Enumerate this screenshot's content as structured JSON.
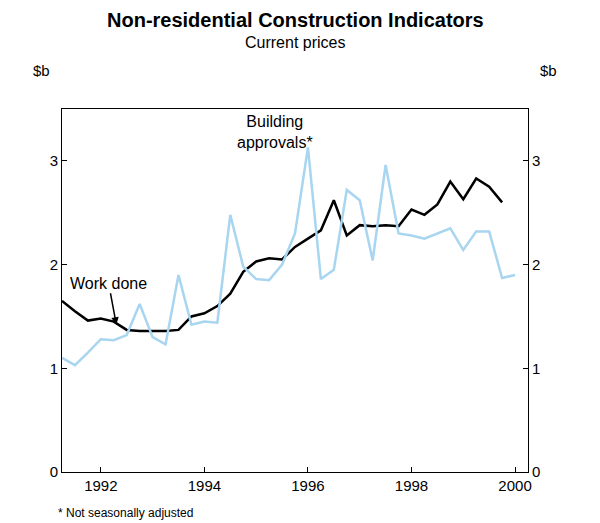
{
  "chart_data": {
    "type": "line",
    "title": "Non-residential Construction Indicators",
    "subtitle": "Current prices",
    "ylabel": "$b",
    "y2label": "$b",
    "note": "* Not seasonally adjusted",
    "xlim": [
      1991.25,
      2000.25
    ],
    "xticks": [
      1992,
      1994,
      1996,
      1998,
      2000
    ],
    "ylim": [
      0,
      3.5
    ],
    "yticks": [
      0,
      1,
      2,
      3
    ],
    "y2lim": [
      0,
      3.5
    ],
    "y2ticks": [
      0,
      1,
      2,
      3
    ],
    "grid": false,
    "series": [
      {
        "name": "Work done",
        "color": "#000000",
        "label_x": 1992.15,
        "label_y": 1.82,
        "arrow_x": 1992.3,
        "arrow_y": 1.42,
        "x": [
          1991.25,
          1991.5,
          1991.75,
          1992.0,
          1992.25,
          1992.5,
          1992.75,
          1993.0,
          1993.25,
          1993.5,
          1993.75,
          1994.0,
          1994.25,
          1994.5,
          1994.75,
          1995.0,
          1995.25,
          1995.5,
          1995.75,
          1996.0,
          1996.25,
          1996.5,
          1996.75,
          1997.0,
          1997.25,
          1997.5,
          1997.75,
          1998.0,
          1998.25,
          1998.5,
          1998.75,
          1999.0,
          1999.25,
          1999.5,
          1999.75
        ],
        "values": [
          1.65,
          1.55,
          1.46,
          1.48,
          1.45,
          1.37,
          1.36,
          1.36,
          1.36,
          1.37,
          1.5,
          1.53,
          1.6,
          1.72,
          1.93,
          2.03,
          2.06,
          2.05,
          2.17,
          2.25,
          2.33,
          2.62,
          2.28,
          2.38,
          2.37,
          2.38,
          2.37,
          2.53,
          2.48,
          2.58,
          2.8,
          2.63,
          2.83,
          2.75,
          2.6
        ]
      },
      {
        "name": "Building\napprovals*",
        "color": "#a8d5f0",
        "label_x": 1995.36,
        "label_y": 3.28,
        "x": [
          1991.25,
          1991.5,
          1991.75,
          1992.0,
          1992.25,
          1992.5,
          1992.75,
          1993.0,
          1993.25,
          1993.5,
          1993.75,
          1994.0,
          1994.25,
          1994.5,
          1994.75,
          1995.0,
          1995.25,
          1995.5,
          1995.75,
          1996.0,
          1996.25,
          1996.5,
          1996.75,
          1997.0,
          1997.25,
          1997.5,
          1997.75,
          1998.0,
          1998.25,
          1998.5,
          1998.75,
          1999.0,
          1999.25,
          1999.5,
          1999.75,
          2000.0
        ],
        "values": [
          1.1,
          1.03,
          1.15,
          1.28,
          1.27,
          1.32,
          1.62,
          1.3,
          1.23,
          1.9,
          1.42,
          1.45,
          1.44,
          2.48,
          1.98,
          1.86,
          1.85,
          2.0,
          2.3,
          3.13,
          1.86,
          1.95,
          2.72,
          2.62,
          2.04,
          2.96,
          2.3,
          2.28,
          2.25,
          2.3,
          2.35,
          2.14,
          2.32,
          2.32,
          1.87,
          1.9
        ]
      }
    ]
  }
}
